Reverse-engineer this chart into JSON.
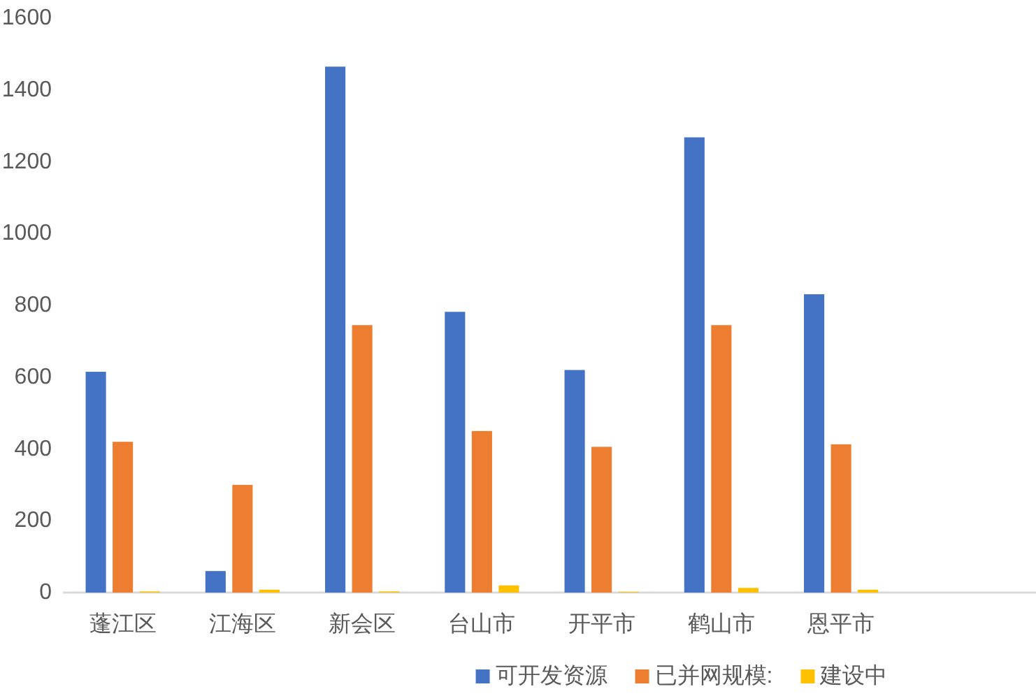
{
  "chart_data": {
    "type": "bar",
    "categories": [
      "蓬江区",
      "江海区",
      "新会区",
      "台山市",
      "开平市",
      "鹤山市",
      "恩平市",
      null
    ],
    "series": [
      {
        "name": "可开发资源",
        "color": "#4472c4",
        "values": [
          615,
          60,
          1465,
          782,
          620,
          1268,
          831,
          null
        ]
      },
      {
        "name": "已并网规模:",
        "color": "#ed7d31",
        "values": [
          420,
          300,
          745,
          450,
          406,
          745,
          413,
          null
        ]
      },
      {
        "name": "建设中",
        "color": "#ffc000",
        "values": [
          3,
          8,
          3,
          20,
          2,
          13,
          8,
          null
        ]
      }
    ],
    "ylim": [
      0,
      1600
    ],
    "yticks": [
      0,
      200,
      400,
      600,
      800,
      1000,
      1200,
      1400,
      1600
    ],
    "legend": "bottom"
  }
}
